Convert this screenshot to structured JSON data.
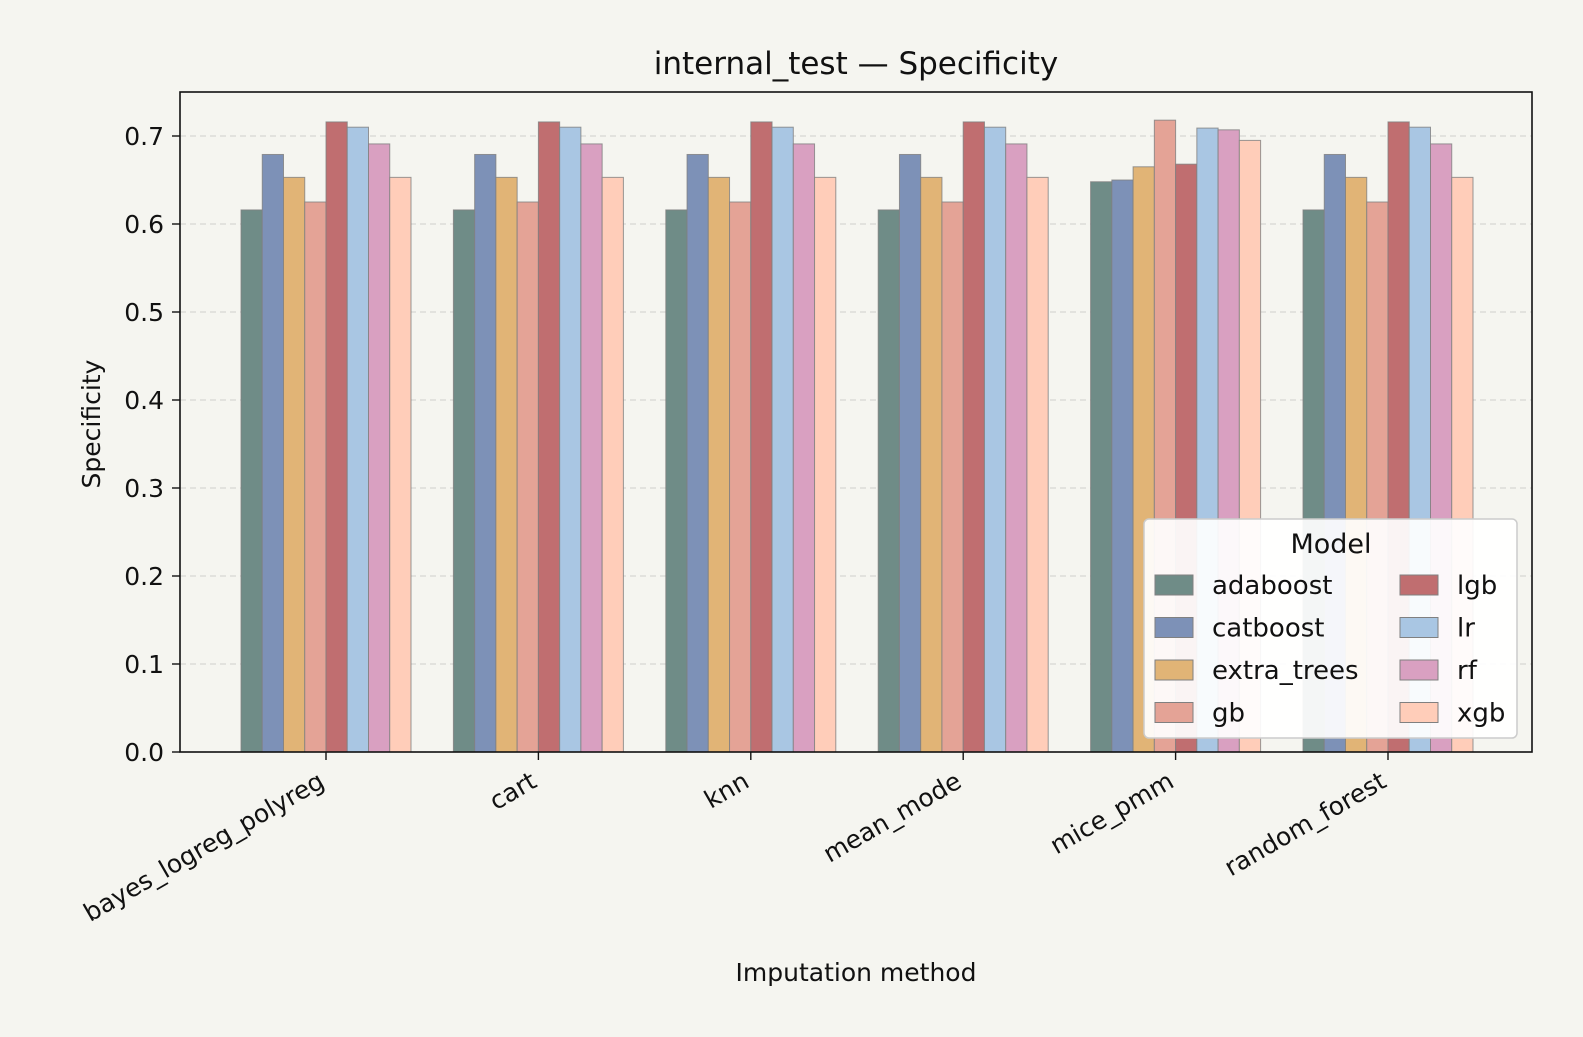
{
  "chart_data": {
    "type": "bar",
    "title": "internal_test — Specificity",
    "xlabel": "Imputation method",
    "ylabel": "Specificity",
    "ylim": [
      0,
      0.75
    ],
    "yticks": [
      "0.0",
      "0.1",
      "0.2",
      "0.3",
      "0.4",
      "0.5",
      "0.6",
      "0.7"
    ],
    "grid": "y-dashed",
    "legend": {
      "title": "Model",
      "position": "lower-right",
      "columns": 2
    },
    "categories": [
      "bayes_logreg_polyreg",
      "cart",
      "knn",
      "mean_mode",
      "mice_pmm",
      "random_forest"
    ],
    "series": [
      {
        "name": "adaboost",
        "color": "#6f8c87",
        "values": [
          0.616,
          0.616,
          0.616,
          0.616,
          0.648,
          0.616
        ]
      },
      {
        "name": "catboost",
        "color": "#7d91b7",
        "values": [
          0.679,
          0.679,
          0.679,
          0.679,
          0.65,
          0.679
        ]
      },
      {
        "name": "extra_trees",
        "color": "#e1b476",
        "values": [
          0.653,
          0.653,
          0.653,
          0.653,
          0.665,
          0.653
        ]
      },
      {
        "name": "gb",
        "color": "#e4a396",
        "values": [
          0.625,
          0.625,
          0.625,
          0.625,
          0.718,
          0.625
        ]
      },
      {
        "name": "lgb",
        "color": "#c06e70",
        "values": [
          0.716,
          0.716,
          0.716,
          0.716,
          0.668,
          0.716
        ]
      },
      {
        "name": "lr",
        "color": "#a9c6e3",
        "values": [
          0.71,
          0.71,
          0.71,
          0.71,
          0.709,
          0.71
        ]
      },
      {
        "name": "rf",
        "color": "#d9a0c1",
        "values": [
          0.691,
          0.691,
          0.691,
          0.691,
          0.707,
          0.691
        ]
      },
      {
        "name": "xgb",
        "color": "#ffcdb9",
        "values": [
          0.653,
          0.653,
          0.653,
          0.653,
          0.695,
          0.653
        ]
      }
    ]
  }
}
